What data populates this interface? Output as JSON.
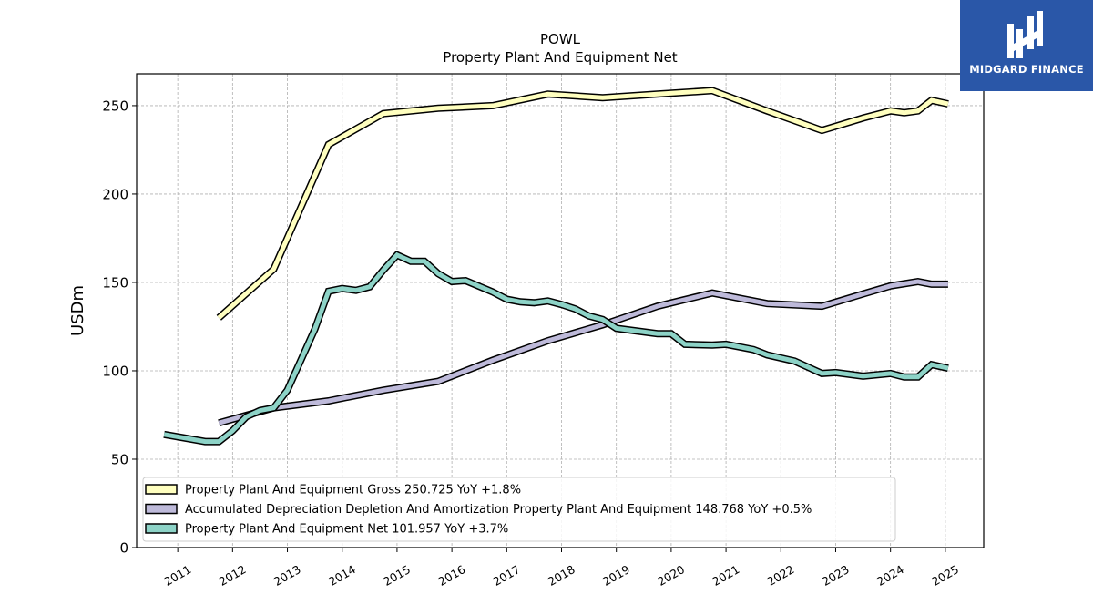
{
  "chart_data": {
    "type": "line",
    "title": "POWL",
    "subtitle": "Property Plant And Equipment Net",
    "ylabel": "USDm",
    "xlabel": "",
    "ylim": [
      0,
      268
    ],
    "xlim": [
      2010.25,
      2025.7
    ],
    "yticks": [
      0,
      50,
      100,
      150,
      200,
      250
    ],
    "xticks": [
      "2011",
      "2012",
      "2013",
      "2014",
      "2015",
      "2016",
      "2017",
      "2018",
      "2019",
      "2020",
      "2021",
      "2022",
      "2023",
      "2024",
      "2025"
    ],
    "grid": true,
    "legend_position": "lower-left",
    "series": [
      {
        "name": "Property Plant And Equipment Gross",
        "legend": "Property Plant And Equipment Gross  250.725 YoY +1.8%",
        "color": "#ffffbf",
        "points": [
          [
            2011.75,
            130
          ],
          [
            2012.75,
            157.5
          ],
          [
            2013.75,
            228
          ],
          [
            2014.75,
            245.5
          ],
          [
            2015.75,
            248.5
          ],
          [
            2016.75,
            250
          ],
          [
            2017.75,
            256.5
          ],
          [
            2018.75,
            254.5
          ],
          [
            2019.75,
            256.5
          ],
          [
            2020.75,
            258.5
          ],
          [
            2021.75,
            247
          ],
          [
            2022.75,
            236
          ],
          [
            2023.5,
            243
          ],
          [
            2024.0,
            247
          ],
          [
            2024.25,
            246
          ],
          [
            2024.5,
            247
          ],
          [
            2024.75,
            253
          ],
          [
            2025.05,
            251
          ]
        ]
      },
      {
        "name": "Accumulated Depreciation Depletion And Amortization Property Plant And Equipment",
        "legend": "Accumulated Depreciation Depletion And Amortization Property Plant And Equipment  148.768 YoY +0.5%",
        "color": "#bebada",
        "points": [
          [
            2011.75,
            70.5
          ],
          [
            2012.75,
            79
          ],
          [
            2013.75,
            83
          ],
          [
            2014.75,
            89
          ],
          [
            2015.75,
            94
          ],
          [
            2016.75,
            106
          ],
          [
            2017.75,
            117
          ],
          [
            2018.75,
            126
          ],
          [
            2019.75,
            136.5
          ],
          [
            2020.75,
            144
          ],
          [
            2021.75,
            138
          ],
          [
            2022.75,
            136.5
          ],
          [
            2023.5,
            143.5
          ],
          [
            2024.0,
            148
          ],
          [
            2024.5,
            150.5
          ],
          [
            2024.75,
            149
          ],
          [
            2025.05,
            149
          ]
        ]
      },
      {
        "name": "Property Plant And Equipment Net",
        "legend": "Property Plant And Equipment Net  101.957 YoY +3.7%",
        "color": "#8dd3c7",
        "points": [
          [
            2010.75,
            64
          ],
          [
            2011.5,
            60
          ],
          [
            2011.75,
            60
          ],
          [
            2012.0,
            66
          ],
          [
            2012.25,
            74
          ],
          [
            2012.5,
            77.5
          ],
          [
            2012.75,
            79
          ],
          [
            2013.0,
            89
          ],
          [
            2013.5,
            123.5
          ],
          [
            2013.75,
            145
          ],
          [
            2014.0,
            146.5
          ],
          [
            2014.25,
            145.5
          ],
          [
            2014.5,
            147.5
          ],
          [
            2014.75,
            157
          ],
          [
            2015.0,
            165.5
          ],
          [
            2015.25,
            162
          ],
          [
            2015.5,
            162
          ],
          [
            2015.75,
            155
          ],
          [
            2016.0,
            150.5
          ],
          [
            2016.25,
            151
          ],
          [
            2016.75,
            144.5
          ],
          [
            2017.0,
            140.5
          ],
          [
            2017.25,
            139
          ],
          [
            2017.5,
            138.5
          ],
          [
            2017.75,
            139.5
          ],
          [
            2018.0,
            137.5
          ],
          [
            2018.25,
            135
          ],
          [
            2018.5,
            131
          ],
          [
            2018.75,
            129
          ],
          [
            2019.0,
            124
          ],
          [
            2019.75,
            121
          ],
          [
            2020.0,
            121
          ],
          [
            2020.25,
            115
          ],
          [
            2020.75,
            114.5
          ],
          [
            2021.0,
            115
          ],
          [
            2021.5,
            112
          ],
          [
            2021.75,
            109
          ],
          [
            2022.25,
            105.5
          ],
          [
            2022.75,
            98.5
          ],
          [
            2023.0,
            99
          ],
          [
            2023.5,
            97
          ],
          [
            2024.0,
            98.5
          ],
          [
            2024.25,
            96.5
          ],
          [
            2024.5,
            96.5
          ],
          [
            2024.75,
            103.5
          ],
          [
            2025.05,
            101.5
          ]
        ]
      }
    ]
  },
  "logo": {
    "text": "MIDGARD FINANCE",
    "icon": "midgard-logo-icon",
    "background": "#2a57a8"
  }
}
